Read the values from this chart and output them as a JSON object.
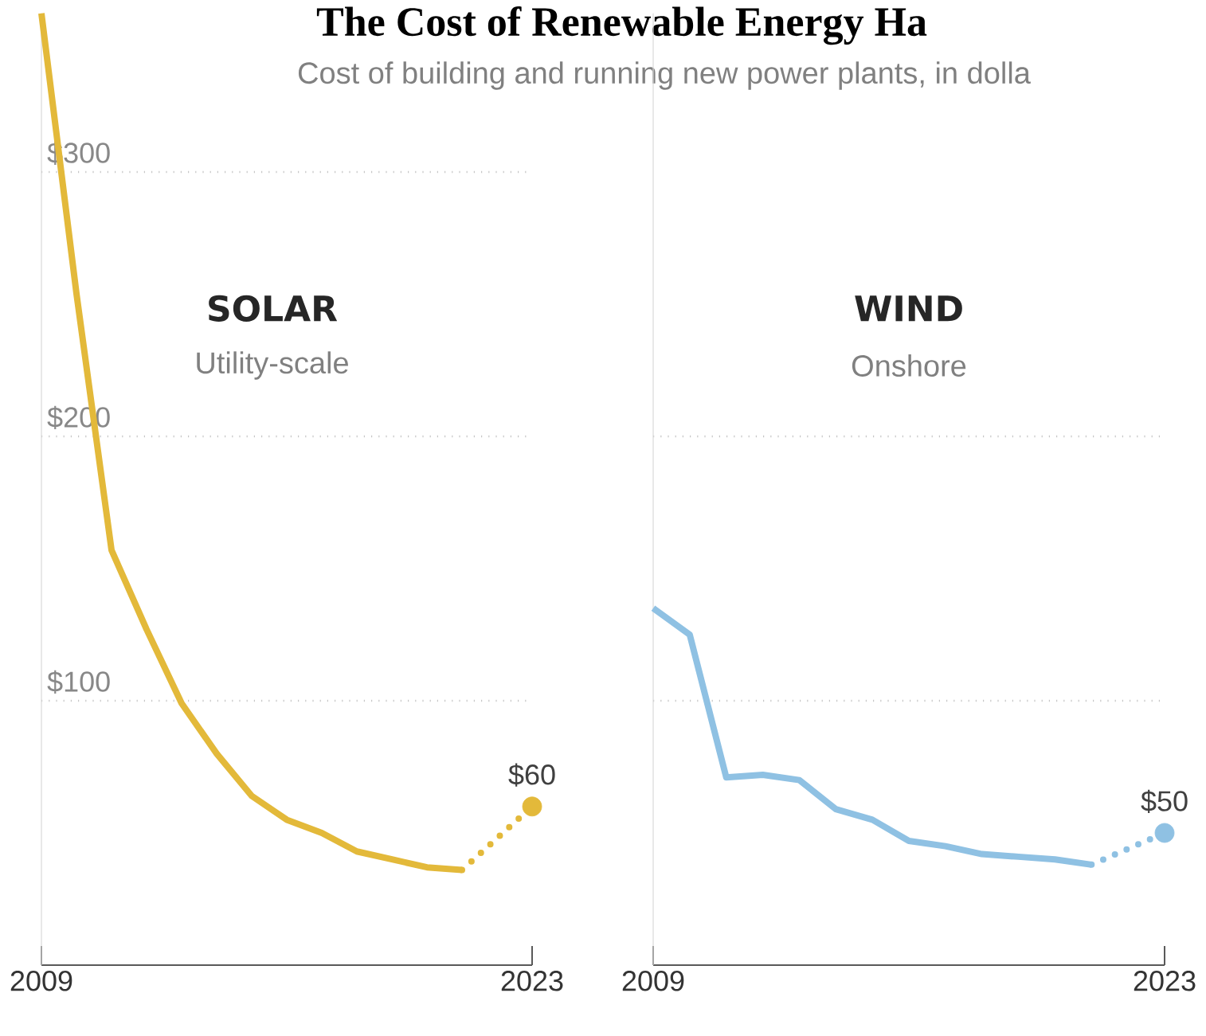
{
  "chart_data": [
    {
      "type": "line",
      "title": "SOLAR",
      "subtitle": "Utility-scale",
      "annotations": [
        "The Cost of Renewable Energy Ha",
        "Cost of building and running new power plants, in dolla"
      ],
      "xlim": [
        2009,
        2023
      ],
      "xticks": [
        2009,
        2023
      ],
      "ylim": [
        0,
        360
      ],
      "yticks": [
        {
          "value": 100,
          "label": "$100"
        },
        {
          "value": 200,
          "label": "$200"
        },
        {
          "value": 300,
          "label": "$300"
        }
      ],
      "grid": "y",
      "series": [
        {
          "color": "#e3b93a",
          "line_style": "solid",
          "x": [
            2009,
            2010,
            2011,
            2012,
            2013,
            2014,
            2015,
            2016,
            2017,
            2018,
            2019,
            2020,
            2021
          ],
          "values": [
            360,
            254,
            157,
            127,
            99,
            80,
            64,
            55,
            50,
            43,
            40,
            37,
            36
          ]
        },
        {
          "color": "#e3b93a",
          "line_style": "dotted",
          "x": [
            2021,
            2023
          ],
          "values": [
            36,
            60
          ]
        },
        {
          "type": "scatter",
          "color": "#e3b93a",
          "x": [
            2023
          ],
          "values": [
            60
          ],
          "value_labels": [
            "$60"
          ]
        }
      ]
    },
    {
      "type": "line",
      "title": "WIND",
      "subtitle": "Onshore",
      "tick_labels": "x",
      "xlim": [
        2009,
        2023
      ],
      "xticks": [
        2009,
        2023
      ],
      "ylim": [
        0,
        360
      ],
      "yticks": [
        100,
        200
      ],
      "grid": "y",
      "series": [
        {
          "color": "#8fc1e3",
          "line_style": "solid",
          "x": [
            2009,
            2010,
            2011,
            2012,
            2013,
            2014,
            2015,
            2016,
            2017,
            2018,
            2019,
            2020,
            2021
          ],
          "values": [
            135,
            125,
            71,
            72,
            70,
            59,
            55,
            47,
            45,
            42,
            41,
            40,
            38
          ]
        },
        {
          "color": "#8fc1e3",
          "line_style": "dotted",
          "x": [
            2021,
            2023
          ],
          "values": [
            38,
            50
          ]
        },
        {
          "type": "scatter",
          "color": "#8fc1e3",
          "x": [
            2023
          ],
          "values": [
            50
          ],
          "value_labels": [
            "$50"
          ]
        }
      ]
    }
  ]
}
